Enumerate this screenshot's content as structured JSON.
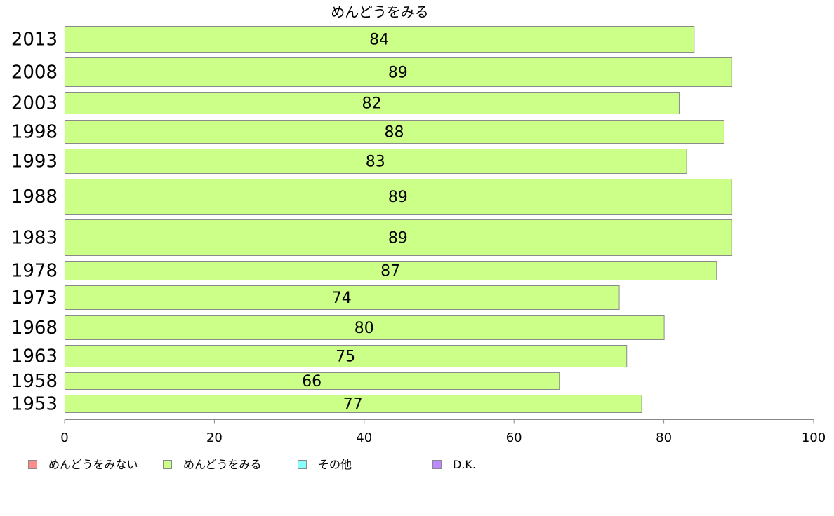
{
  "chart_data": {
    "type": "bar",
    "orientation": "horizontal",
    "title": "めんどうをみる",
    "categories": [
      "2013",
      "2008",
      "2003",
      "1998",
      "1993",
      "1988",
      "1983",
      "1978",
      "1973",
      "1968",
      "1963",
      "1958",
      "1953"
    ],
    "series": [
      {
        "name": "めんどうをみる",
        "values": [
          84,
          89,
          82,
          88,
          83,
          89,
          89,
          87,
          74,
          80,
          75,
          66,
          77
        ]
      }
    ],
    "value_labels": [
      "84",
      "89",
      "82",
      "88",
      "83",
      "89",
      "89",
      "87",
      "74",
      "80",
      "75",
      "66",
      "77"
    ],
    "xlim": [
      0,
      100
    ],
    "xticks": [
      0,
      20,
      40,
      60,
      80,
      100
    ],
    "grid": false,
    "legend_position": "bottom",
    "legend": [
      {
        "label": "めんどうをみない",
        "color": "#ff8c8c"
      },
      {
        "label": "めんどうをみる",
        "color": "#ccff88"
      },
      {
        "label": "その他",
        "color": "#88ffff"
      },
      {
        "label": "D.K.",
        "color": "#bb88ff"
      }
    ],
    "bar_color": "#ccff88",
    "bar_border_color": "#8a8a8a"
  }
}
